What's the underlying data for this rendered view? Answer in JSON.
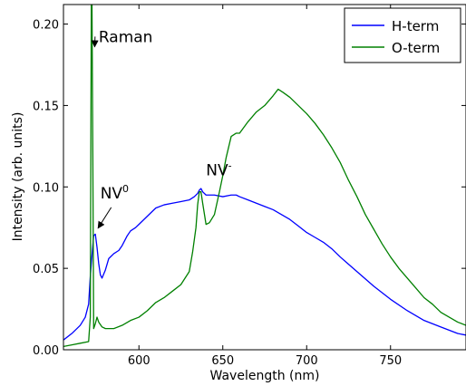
{
  "chart_data": {
    "type": "line",
    "xlabel": "Wavelength (nm)",
    "ylabel": "Intensity (arb. units)",
    "xlim": [
      555,
      795
    ],
    "ylim": [
      0,
      0.212
    ],
    "x_ticks": [
      600,
      650,
      700,
      750
    ],
    "y_ticks": [
      0.0,
      0.05,
      0.1,
      0.15,
      0.2
    ],
    "x_tick_labels": [
      "600",
      "650",
      "700",
      "750"
    ],
    "y_tick_labels": [
      "0.00",
      "0.05",
      "0.10",
      "0.15",
      "0.20"
    ],
    "grid": false,
    "legend_position": "top-right",
    "series": [
      {
        "name": "H-term",
        "color": "#0000ff",
        "x": [
          555,
          560,
          565,
          568,
          570,
          571,
          572,
          573,
          574,
          575,
          576,
          577,
          578,
          580,
          582,
          585,
          588,
          590,
          593,
          595,
          598,
          600,
          605,
          610,
          615,
          620,
          625,
          630,
          633,
          635,
          636,
          637,
          638,
          640,
          645,
          650,
          655,
          658,
          660,
          665,
          670,
          675,
          680,
          685,
          690,
          695,
          700,
          705,
          710,
          715,
          720,
          730,
          740,
          750,
          760,
          770,
          780,
          790,
          795
        ],
        "y": [
          0.006,
          0.01,
          0.015,
          0.02,
          0.028,
          0.045,
          0.058,
          0.07,
          0.071,
          0.063,
          0.053,
          0.046,
          0.044,
          0.049,
          0.056,
          0.059,
          0.061,
          0.064,
          0.07,
          0.073,
          0.075,
          0.077,
          0.082,
          0.087,
          0.089,
          0.09,
          0.091,
          0.092,
          0.094,
          0.096,
          0.098,
          0.099,
          0.097,
          0.095,
          0.095,
          0.094,
          0.095,
          0.095,
          0.094,
          0.092,
          0.09,
          0.088,
          0.086,
          0.083,
          0.08,
          0.076,
          0.072,
          0.069,
          0.066,
          0.062,
          0.057,
          0.048,
          0.039,
          0.031,
          0.024,
          0.018,
          0.014,
          0.01,
          0.009
        ]
      },
      {
        "name": "O-term",
        "color": "#008000",
        "x": [
          555,
          560,
          565,
          570,
          571,
          571.6,
          572,
          572.5,
          573,
          574,
          575,
          576,
          578,
          580,
          585,
          590,
          595,
          600,
          605,
          610,
          615,
          620,
          625,
          630,
          632,
          634,
          635,
          636,
          637,
          638,
          640,
          642,
          645,
          648,
          650,
          652,
          655,
          658,
          660,
          665,
          670,
          675,
          680,
          683,
          686,
          690,
          695,
          700,
          705,
          710,
          715,
          720,
          725,
          730,
          735,
          740,
          745,
          750,
          755,
          760,
          765,
          770,
          775,
          780,
          785,
          790,
          795
        ],
        "y": [
          0.002,
          0.003,
          0.004,
          0.005,
          0.02,
          0.212,
          0.212,
          0.12,
          0.013,
          0.016,
          0.02,
          0.017,
          0.014,
          0.013,
          0.013,
          0.015,
          0.018,
          0.02,
          0.024,
          0.029,
          0.032,
          0.036,
          0.04,
          0.048,
          0.06,
          0.075,
          0.089,
          0.097,
          0.097,
          0.09,
          0.077,
          0.078,
          0.083,
          0.097,
          0.107,
          0.118,
          0.131,
          0.133,
          0.133,
          0.14,
          0.146,
          0.15,
          0.156,
          0.16,
          0.158,
          0.155,
          0.15,
          0.145,
          0.139,
          0.132,
          0.124,
          0.115,
          0.104,
          0.094,
          0.083,
          0.074,
          0.065,
          0.057,
          0.05,
          0.044,
          0.038,
          0.032,
          0.028,
          0.023,
          0.02,
          0.017,
          0.015
        ]
      }
    ],
    "annotations": [
      {
        "id": "raman",
        "text": "Raman",
        "x": 572,
        "y": 0.186,
        "text_x": 576,
        "text_y": 0.189,
        "sup": ""
      },
      {
        "id": "nv0",
        "text": "NV",
        "sup": "0",
        "x": 574,
        "y": 0.073,
        "text_x": 577,
        "text_y": 0.093
      },
      {
        "id": "nvminus",
        "text": "NV",
        "sup": "-",
        "x": 637,
        "y": 0.099,
        "text_x": 640,
        "text_y": 0.107
      }
    ]
  }
}
